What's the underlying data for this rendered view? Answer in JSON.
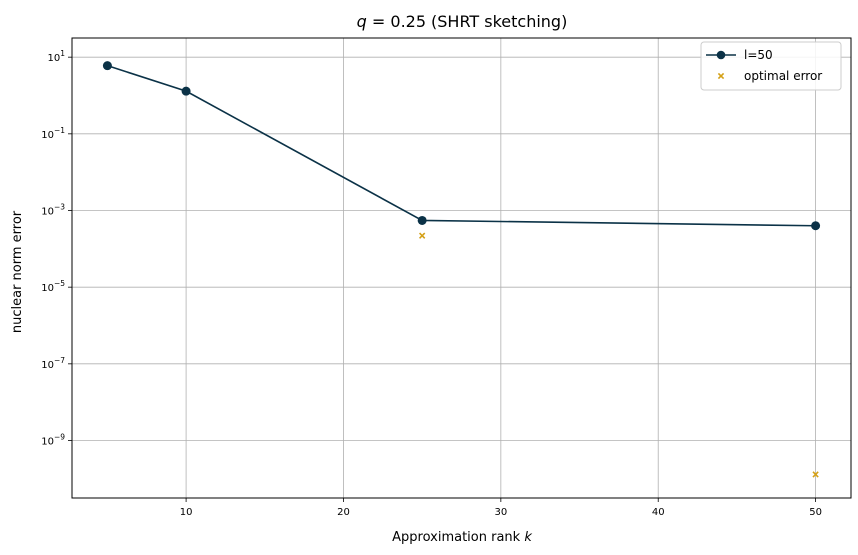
{
  "chart_data": {
    "type": "line",
    "title_prefix": "q = 0.25",
    "title_suffix": " (SHRT sketching)",
    "title_var": "q",
    "title_eq": " = 0.25",
    "title_rest": "(SHRT sketching)",
    "xlabel_text": "Approximation rank ",
    "xlabel_var": "k",
    "ylabel": "nuclear norm error",
    "x_ticks": [
      10,
      20,
      30,
      40,
      50
    ],
    "xlim": [
      2.75,
      52.25
    ],
    "y_scale": "log",
    "y_tick_exponents": [
      1,
      -1,
      -3,
      -5,
      -7,
      -9
    ],
    "y_tick_base": "10",
    "ylim_log10": [
      -10.5,
      1.5
    ],
    "grid": true,
    "legend_position": "top-right",
    "series": [
      {
        "name": "l=50",
        "kind": "line-marker",
        "color": "#0b3247",
        "x": [
          5,
          10,
          25,
          50
        ],
        "y": [
          6.0,
          1.3,
          0.00055,
          0.0004
        ]
      },
      {
        "name": "optimal error",
        "kind": "scatter-x",
        "color": "#d4a017",
        "x": [
          25,
          50
        ],
        "y": [
          0.00022,
          1.3e-10
        ]
      }
    ]
  }
}
